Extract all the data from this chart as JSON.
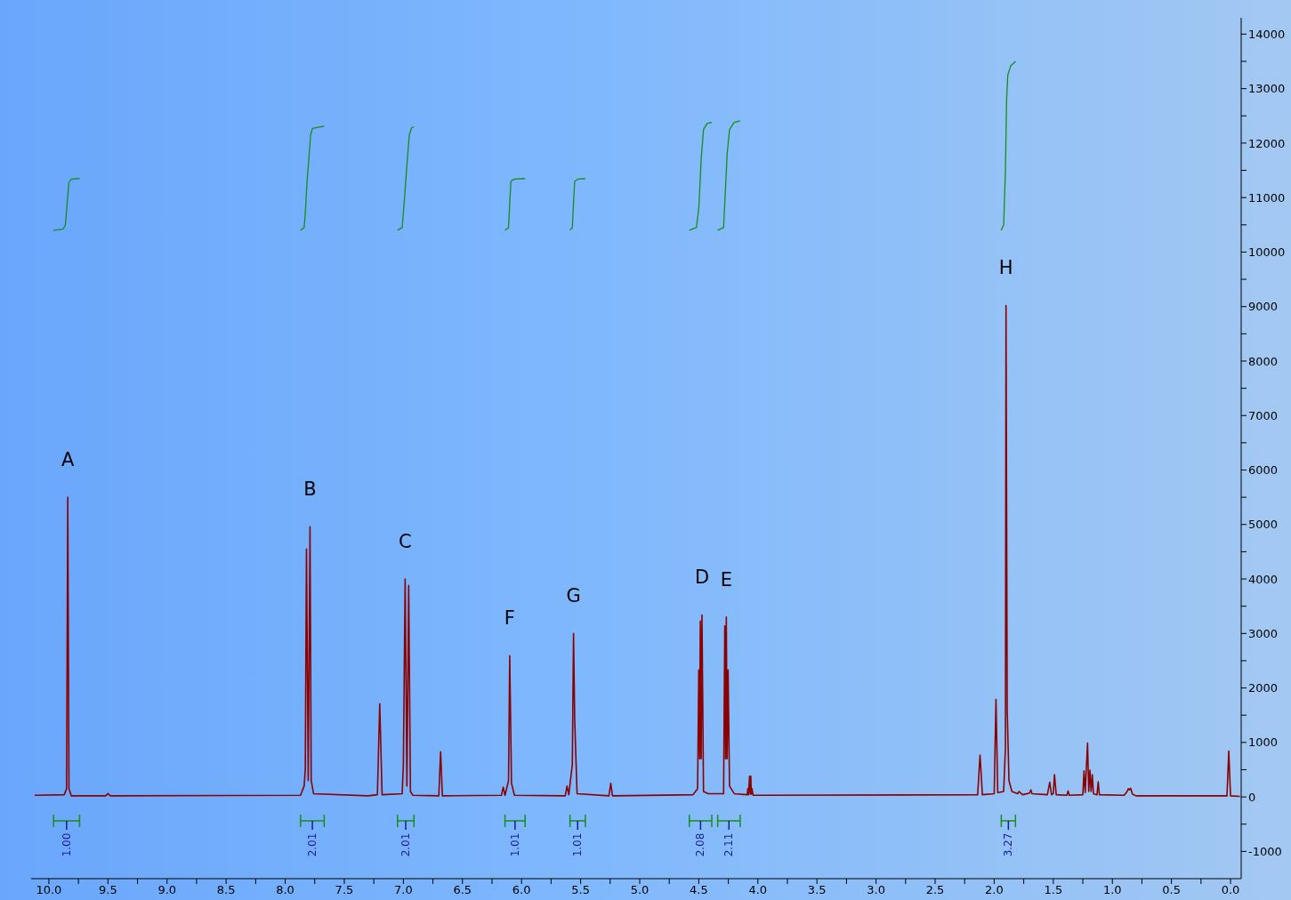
{
  "chart_data": {
    "type": "line",
    "xlim": [
      10.15,
      -0.09
    ],
    "ylim": [
      -1500,
      14300
    ],
    "xticks": [
      {
        "value": 10,
        "label": "10.0"
      },
      {
        "value": 9.75,
        "label": null
      },
      {
        "value": 9.5,
        "label": "9.5"
      },
      {
        "value": 9.25,
        "label": null
      },
      {
        "value": 9,
        "label": "9.0"
      },
      {
        "value": 8.75,
        "label": null
      },
      {
        "value": 8.5,
        "label": "8.5"
      },
      {
        "value": 8.25,
        "label": null
      },
      {
        "value": 8,
        "label": "8.0"
      },
      {
        "value": 7.75,
        "label": null
      },
      {
        "value": 7.5,
        "label": "7.5"
      },
      {
        "value": 7.25,
        "label": null
      },
      {
        "value": 7,
        "label": "7.0"
      },
      {
        "value": 6.75,
        "label": null
      },
      {
        "value": 6.5,
        "label": "6.5"
      },
      {
        "value": 6.25,
        "label": null
      },
      {
        "value": 6,
        "label": "6.0"
      },
      {
        "value": 5.75,
        "label": null
      },
      {
        "value": 5.5,
        "label": "5.5"
      },
      {
        "value": 5.25,
        "label": null
      },
      {
        "value": 5,
        "label": "5.0"
      },
      {
        "value": 4.75,
        "label": null
      },
      {
        "value": 4.5,
        "label": "4.5"
      },
      {
        "value": 4.25,
        "label": null
      },
      {
        "value": 4,
        "label": "4.0"
      },
      {
        "value": 3.75,
        "label": null
      },
      {
        "value": 3.5,
        "label": "3.5"
      },
      {
        "value": 3.25,
        "label": null
      },
      {
        "value": 3,
        "label": "3.0"
      },
      {
        "value": 2.75,
        "label": null
      },
      {
        "value": 2.5,
        "label": "2.5"
      },
      {
        "value": 2.25,
        "label": null
      },
      {
        "value": 2,
        "label": "2.0"
      },
      {
        "value": 1.75,
        "label": null
      },
      {
        "value": 1.5,
        "label": "1.5"
      },
      {
        "value": 1.25,
        "label": null
      },
      {
        "value": 1,
        "label": "1.0"
      },
      {
        "value": 0.75,
        "label": null
      },
      {
        "value": 0.5,
        "label": "0.5"
      },
      {
        "value": 0.25,
        "label": null
      },
      {
        "value": 0,
        "label": "0.0"
      }
    ],
    "yticks": [
      -1000,
      {
        "value": -500,
        "label": null
      },
      0,
      {
        "value": 500,
        "label": null
      },
      1000,
      {
        "value": 1500,
        "label": null
      },
      2000,
      {
        "value": 2500,
        "label": null
      },
      3000,
      {
        "value": 3500,
        "label": null
      },
      4000,
      {
        "value": 4500,
        "label": null
      },
      5000,
      {
        "value": 5500,
        "label": null
      },
      6000,
      {
        "value": 6500,
        "label": null
      },
      7000,
      {
        "value": 7500,
        "label": null
      },
      8000,
      {
        "value": 8500,
        "label": null
      },
      9000,
      {
        "value": 9500,
        "label": null
      },
      10000,
      {
        "value": 10500,
        "label": null
      },
      11000,
      {
        "value": 11500,
        "label": null
      },
      12000,
      {
        "value": 12500,
        "label": null
      },
      13000,
      {
        "value": 13500,
        "label": null
      },
      14000
    ],
    "series": [
      {
        "color": "#8b0000",
        "x": [
          10.12,
          9.87,
          9.85,
          9.84,
          9.83,
          9.81,
          9.52,
          9.5,
          9.48,
          7.87,
          7.84,
          7.83,
          7.82,
          7.805,
          7.79,
          7.78,
          7.76,
          7.3,
          7.22,
          7.2,
          7.18,
          7.01,
          7.0,
          6.985,
          6.97,
          6.955,
          6.94,
          6.92,
          6.7,
          6.685,
          6.67,
          6.17,
          6.155,
          6.14,
          6.11,
          6.1,
          6.085,
          6.06,
          5.63,
          5.615,
          5.6,
          5.57,
          5.56,
          5.55,
          5.53,
          5.26,
          5.245,
          5.23,
          4.55,
          4.51,
          4.5,
          4.493,
          4.487,
          4.48,
          4.473,
          4.46,
          4.42,
          4.29,
          4.28,
          4.273,
          4.267,
          4.26,
          4.252,
          4.24,
          4.2,
          4.09,
          4.085,
          4.08,
          4.07,
          4.065,
          4.06,
          4.055,
          4.05,
          4.04,
          2.14,
          2.12,
          2.1,
          2.0,
          1.985,
          1.97,
          1.92,
          1.905,
          1.9,
          1.89,
          1.875,
          1.85,
          1.8,
          1.79,
          1.76,
          1.7,
          1.69,
          1.68,
          1.55,
          1.53,
          1.515,
          1.5,
          1.49,
          1.475,
          1.385,
          1.375,
          1.365,
          1.25,
          1.24,
          1.23,
          1.21,
          1.2,
          1.19,
          1.18,
          1.17,
          1.16,
          1.13,
          1.12,
          1.11,
          0.9,
          0.875,
          0.865,
          0.855,
          0.845,
          0.83,
          0.8,
          0.03,
          0.015,
          0.0,
          -0.08
        ],
        "values": [
          30,
          40,
          150,
          5500,
          150,
          20,
          20,
          60,
          20,
          30,
          200,
          500,
          4550,
          300,
          4960,
          300,
          60,
          20,
          40,
          1710,
          40,
          60,
          600,
          4000,
          200,
          3880,
          100,
          30,
          20,
          830,
          20,
          30,
          180,
          30,
          300,
          2590,
          250,
          30,
          20,
          200,
          40,
          600,
          3000,
          1400,
          60,
          20,
          250,
          20,
          40,
          150,
          2330,
          700,
          3230,
          700,
          3340,
          100,
          60,
          60,
          3140,
          700,
          3300,
          700,
          2330,
          200,
          60,
          40,
          150,
          40,
          380,
          50,
          380,
          50,
          150,
          30,
          40,
          770,
          40,
          60,
          1790,
          80,
          100,
          900,
          9020,
          1600,
          300,
          100,
          60,
          100,
          40,
          70,
          130,
          60,
          40,
          270,
          40,
          60,
          410,
          40,
          30,
          110,
          30,
          40,
          480,
          80,
          990,
          100,
          490,
          100,
          410,
          60,
          40,
          280,
          40,
          30,
          100,
          150,
          130,
          160,
          50,
          20,
          20,
          840,
          20,
          10
        ]
      },
      {
        "color": "#1a8c1a",
        "x": [
          9.96,
          9.88,
          9.86,
          9.845,
          9.83,
          9.81,
          9.74
        ],
        "values": [
          10400,
          10420,
          10500,
          10900,
          11280,
          11340,
          11350
        ]
      },
      {
        "color": "#1a8c1a",
        "x": [
          7.87,
          7.84,
          7.83,
          7.815,
          7.8,
          7.785,
          7.77,
          7.67
        ],
        "values": [
          10400,
          10450,
          10700,
          11300,
          11700,
          12150,
          12270,
          12310
        ]
      },
      {
        "color": "#1a8c1a",
        "x": [
          7.05,
          7.01,
          6.99,
          6.97,
          6.95,
          6.93,
          6.91
        ],
        "values": [
          10400,
          10450,
          11000,
          11600,
          12150,
          12280,
          12300
        ]
      },
      {
        "color": "#1a8c1a",
        "x": [
          6.14,
          6.11,
          6.1,
          6.09,
          6.06,
          5.97
        ],
        "values": [
          10400,
          10450,
          10900,
          11300,
          11340,
          11350
        ]
      },
      {
        "color": "#1a8c1a",
        "x": [
          5.59,
          5.57,
          5.56,
          5.55,
          5.52,
          5.46
        ],
        "values": [
          10400,
          10450,
          10900,
          11300,
          11340,
          11350
        ]
      },
      {
        "color": "#1a8c1a",
        "x": [
          4.58,
          4.52,
          4.5,
          4.48,
          4.46,
          4.43,
          4.39
        ],
        "values": [
          10400,
          10450,
          10800,
          11700,
          12250,
          12360,
          12380
        ]
      },
      {
        "color": "#1a8c1a",
        "x": [
          4.34,
          4.29,
          4.28,
          4.26,
          4.24,
          4.2,
          4.15
        ],
        "values": [
          10400,
          10450,
          10900,
          11800,
          12250,
          12380,
          12410
        ]
      },
      {
        "color": "#1a8c1a",
        "x": [
          1.94,
          1.92,
          1.905,
          1.895,
          1.885,
          1.86,
          1.82
        ],
        "values": [
          10400,
          10500,
          11500,
          12800,
          13250,
          13420,
          13500
        ]
      }
    ],
    "annotations": [
      "1.00",
      "2.01",
      "2.01",
      "1.01",
      "1.01",
      "2.08",
      "2.11",
      "3.27",
      {
        "text": "A",
        "x": 9.84,
        "y": 5500
      },
      {
        "text": "B",
        "x": 7.79,
        "y": 4960
      },
      {
        "text": "C",
        "x": 6.985,
        "y": 4000
      },
      {
        "text": "F",
        "x": 6.1,
        "y": 2590
      },
      {
        "text": "G",
        "x": 5.56,
        "y": 3000
      },
      {
        "text": "D",
        "x": 4.473,
        "y": 3340
      },
      {
        "text": "E",
        "x": 4.267,
        "y": 3300
      },
      {
        "text": "H",
        "x": 1.9,
        "y": 9020
      }
    ]
  }
}
